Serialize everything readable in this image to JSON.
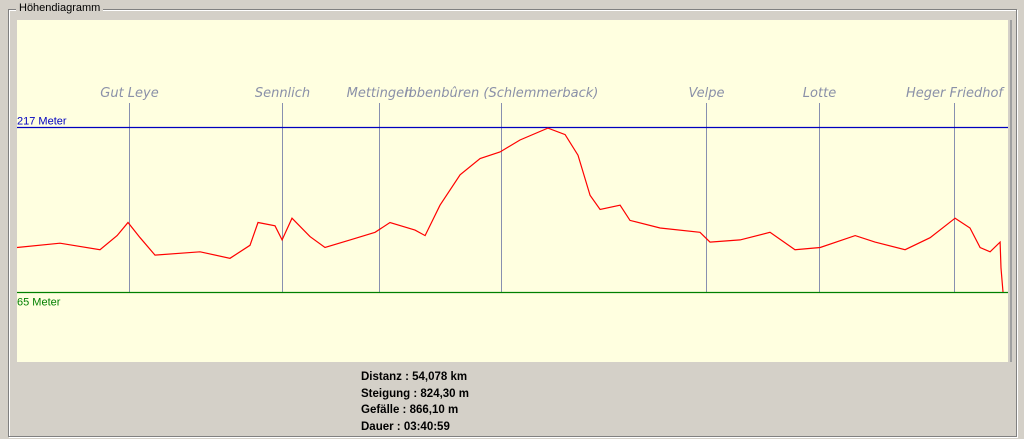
{
  "group_title": "Höhendiagramm",
  "chart_data": {
    "type": "line",
    "title": "",
    "xlabel": "",
    "ylabel": "",
    "x_unit": "km",
    "xlim": [
      0,
      54.078
    ],
    "reference_lines": [
      {
        "label": "217 Meter",
        "value": 217,
        "color": "#0000c0"
      },
      {
        "label": "65 Meter",
        "value": 65,
        "color": "#008000"
      }
    ],
    "waypoints": [
      {
        "label": "Gut Leye",
        "km": 6.14
      },
      {
        "label": "Sennlich",
        "km": 14.53
      },
      {
        "label": "Mettingen",
        "km": 19.86
      },
      {
        "label": "Ibbenbûren (Schlemmerback)",
        "km": 26.55
      },
      {
        "label": "Velpe",
        "km": 37.79
      },
      {
        "label": "Lotte",
        "km": 43.99
      },
      {
        "label": "Heger Friedhof",
        "km": 51.39
      }
    ],
    "series": [
      {
        "color": "#ff0000",
        "x": [
          0,
          2.36,
          4.55,
          5.49,
          6.09,
          6.75,
          7.57,
          10.04,
          11.68,
          12.78,
          13.22,
          14.15,
          14.54,
          15.08,
          16.07,
          16.89,
          18.27,
          19.64,
          20.46,
          21.83,
          22.38,
          23.2,
          24.3,
          25.4,
          26.49,
          27.59,
          29.12,
          30.06,
          30.77,
          31.43,
          31.98,
          33.08,
          33.62,
          35.27,
          37.46,
          38.01,
          39.66,
          41.3,
          42.67,
          44.05,
          45.97,
          47.06,
          48.71,
          50.08,
          51.45,
          52.27,
          52.82,
          53.37,
          53.92,
          53.97,
          54.078
        ],
        "y": [
          106,
          110,
          104,
          117,
          129,
          115,
          99,
          102,
          96,
          108,
          129,
          126,
          113,
          133,
          116,
          106,
          113,
          120,
          129,
          122,
          117,
          145,
          173,
          188,
          194,
          205,
          216,
          210,
          191,
          154,
          141,
          145,
          131,
          124,
          120,
          111,
          113,
          120,
          104,
          106,
          117,
          111,
          104,
          115,
          133,
          124,
          106,
          102,
          111,
          87,
          65
        ]
      }
    ],
    "grid": false,
    "legend": "none"
  },
  "stats": {
    "distance": "Distanz : 54,078 km",
    "climb": "Steigung : 824,30 m",
    "descent": "Gefälle : 866,10 m",
    "duration": "Dauer : 03:40:59"
  }
}
